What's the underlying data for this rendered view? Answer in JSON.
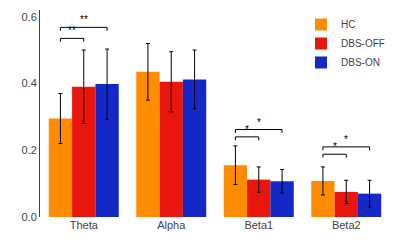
{
  "chart_data": {
    "type": "bar",
    "categories": [
      "Theta",
      "Alpha",
      "Beta1",
      "Beta2"
    ],
    "series": [
      {
        "name": "HC",
        "color": "#FF8C00",
        "values": [
          0.295,
          0.435,
          0.155,
          0.108
        ],
        "errors": [
          0.075,
          0.085,
          0.058,
          0.042
        ]
      },
      {
        "name": "DBS-OFF",
        "color": "#E8160C",
        "values": [
          0.39,
          0.405,
          0.112,
          0.075
        ],
        "errors": [
          0.11,
          0.09,
          0.038,
          0.035
        ]
      },
      {
        "name": "DBS-ON",
        "color": "#1428C8",
        "values": [
          0.398,
          0.412,
          0.107,
          0.07
        ],
        "errors": [
          0.105,
          0.088,
          0.035,
          0.04
        ]
      }
    ],
    "significance": [
      {
        "category": "Theta",
        "series": [
          "HC",
          "DBS-OFF"
        ],
        "y": 0.535,
        "label": "**"
      },
      {
        "category": "Theta",
        "series": [
          "HC",
          "DBS-ON"
        ],
        "y": 0.568,
        "label": "**"
      },
      {
        "category": "Beta1",
        "series": [
          "HC",
          "DBS-OFF"
        ],
        "y": 0.24,
        "label": "*"
      },
      {
        "category": "Beta1",
        "series": [
          "HC",
          "DBS-ON"
        ],
        "y": 0.262,
        "label": "*"
      },
      {
        "category": "Beta2",
        "series": [
          "HC",
          "DBS-OFF"
        ],
        "y": 0.188,
        "label": "*"
      },
      {
        "category": "Beta2",
        "series": [
          "HC",
          "DBS-ON"
        ],
        "y": 0.21,
        "label": "*"
      }
    ],
    "ylim": [
      0.0,
      0.62
    ],
    "yticks": [
      {
        "value": 0.0,
        "label": "0.0"
      },
      0.2,
      0.4,
      0.6
    ],
    "grid": false,
    "legend": "upper right"
  }
}
